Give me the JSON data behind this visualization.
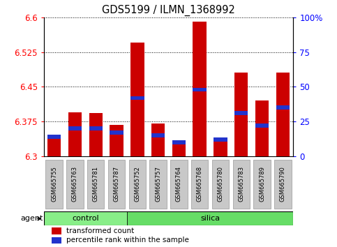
{
  "title": "GDS5199 / ILMN_1368992",
  "samples": [
    "GSM665755",
    "GSM665763",
    "GSM665781",
    "GSM665787",
    "GSM665752",
    "GSM665757",
    "GSM665764",
    "GSM665768",
    "GSM665780",
    "GSM665783",
    "GSM665789",
    "GSM665790"
  ],
  "red_values": [
    6.345,
    6.395,
    6.393,
    6.368,
    6.545,
    6.37,
    6.334,
    6.59,
    6.34,
    6.48,
    6.42,
    6.48
  ],
  "blue_pct": [
    14,
    20,
    20,
    17,
    42,
    15,
    10,
    48,
    12,
    31,
    22,
    35
  ],
  "ymin": 6.3,
  "ymax": 6.6,
  "yticks_left": [
    6.3,
    6.375,
    6.45,
    6.525,
    6.6
  ],
  "yticks_right": [
    0,
    25,
    50,
    75,
    100
  ],
  "bar_color": "#cc0000",
  "blue_color": "#2233cc",
  "control_color": "#88ee88",
  "silica_color": "#66dd66",
  "tick_bg_color": "#c8c8c8",
  "legend_red": "transformed count",
  "legend_blue": "percentile rank within the sample",
  "n_control": 4,
  "n_silica": 8
}
